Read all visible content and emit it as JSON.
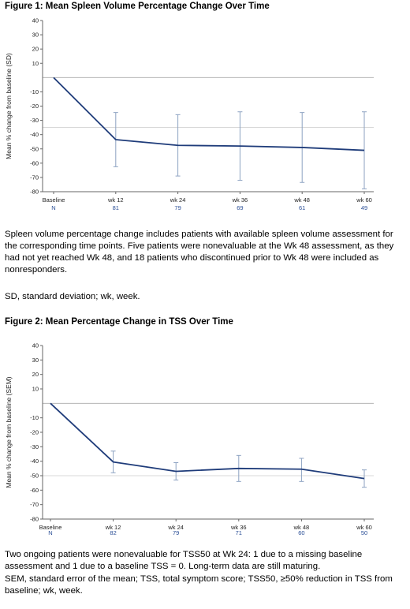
{
  "figure1": {
    "title": "Figure 1: Mean Spleen Volume Percentage Change Over Time",
    "notes": [
      "Spleen volume percentage change includes patients with available spleen volume assessment for the corresponding time points. Five patients were nonevaluable at the Wk 48 assessment, as they had not yet reached Wk 48, and 18 patients who discontinued prior to Wk 48 were included as nonresponders.",
      "SD, standard deviation; wk, week."
    ]
  },
  "figure2": {
    "title": "Figure 2: Mean Percentage Change in TSS Over Time",
    "notes": [
      "Two ongoing patients were nonevaluable for TSS50 at Wk 24: 1 due to a missing baseline assessment and 1 due to a baseline TSS = 0. Long-term data are still maturing.",
      "SEM, standard error of the mean; TSS, total symptom score; TSS50, ≥50% reduction in TSS from baseline; wk, week."
    ]
  },
  "chart_data": [
    {
      "type": "line",
      "title": "Figure 1: Mean Spleen Volume Percentage Change Over Time",
      "ylabel": "Mean % change from baseline (SD)",
      "xlabel": "",
      "categories": [
        "Baseline",
        "wk 12",
        "wk 24",
        "wk 36",
        "wk 48",
        "wk 60"
      ],
      "values": [
        0,
        -43.5,
        -47.5,
        -48,
        -49,
        -51
      ],
      "error_upper": [
        null,
        -24.5,
        -26,
        -24,
        -24.5,
        -24
      ],
      "error_lower": [
        null,
        -62.5,
        -69,
        -72,
        -73.5,
        -78
      ],
      "n_label": "N",
      "n_values": [
        "",
        "81",
        "79",
        "69",
        "61",
        "49"
      ],
      "ylim": [
        -80,
        40
      ],
      "yticks": [
        40,
        30,
        20,
        10,
        -10,
        -20,
        -30,
        -40,
        -50,
        -60,
        -70,
        -80
      ],
      "reference_lines": [
        0,
        -35
      ],
      "line_color": "#1f3c7a",
      "error_color": "#8da2c2",
      "n_color": "#2a4e96"
    },
    {
      "type": "line",
      "title": "Figure 2: Mean Percentage Change in TSS Over Time",
      "ylabel": "Mean % change from baseline (SEM)",
      "xlabel": "",
      "categories": [
        "Baseline",
        "wk 12",
        "wk 24",
        "wk 36",
        "wk 48",
        "wk 60"
      ],
      "values": [
        0,
        -40.5,
        -47,
        -45,
        -45.5,
        -52
      ],
      "error_upper": [
        null,
        -33,
        -41,
        -36,
        -38,
        -46
      ],
      "error_lower": [
        null,
        -48,
        -53,
        -54,
        -54,
        -58
      ],
      "n_label": "N",
      "n_values": [
        "",
        "82",
        "79",
        "71",
        "60",
        "50"
      ],
      "ylim": [
        -80,
        40
      ],
      "yticks": [
        40,
        30,
        20,
        10,
        -10,
        -20,
        -30,
        -40,
        -50,
        -60,
        -70,
        -80
      ],
      "reference_lines": [
        0,
        -50
      ],
      "line_color": "#1f3c7a",
      "error_color": "#8da2c2",
      "n_color": "#2a4e96"
    }
  ]
}
